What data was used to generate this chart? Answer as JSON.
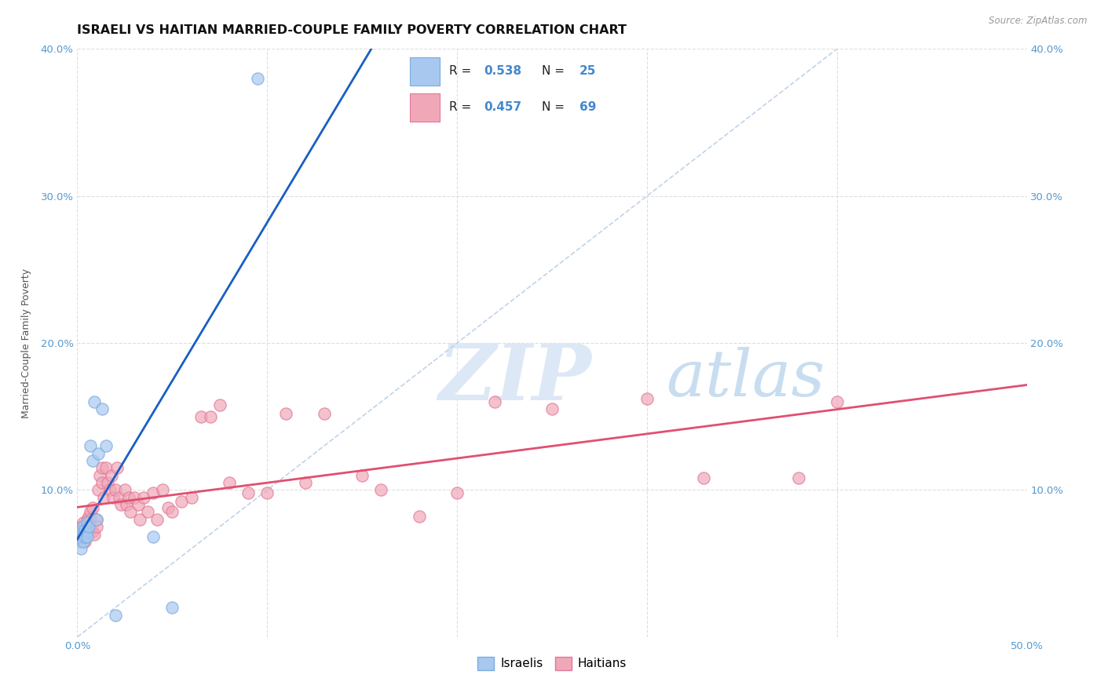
{
  "title": "ISRAELI VS HAITIAN MARRIED-COUPLE FAMILY POVERTY CORRELATION CHART",
  "source": "Source: ZipAtlas.com",
  "ylabel": "Married-Couple Family Poverty",
  "xlim": [
    0,
    0.5
  ],
  "ylim": [
    0,
    0.4
  ],
  "xticks": [
    0.0,
    0.1,
    0.2,
    0.3,
    0.4,
    0.5
  ],
  "yticks": [
    0.0,
    0.1,
    0.2,
    0.3,
    0.4
  ],
  "xtick_labels": [
    "0.0%",
    "",
    "",
    "",
    "",
    "50.0%"
  ],
  "ytick_labels_left": [
    "",
    "10.0%",
    "20.0%",
    "30.0%",
    "40.0%"
  ],
  "ytick_labels_right": [
    "",
    "10.0%",
    "20.0%",
    "30.0%",
    "40.0%"
  ],
  "israeli_color": "#a8c8f0",
  "israeli_edge_color": "#7aabdf",
  "haitian_color": "#f0a8b8",
  "haitian_edge_color": "#e07898",
  "israeli_R": 0.538,
  "israeli_N": 25,
  "haitian_R": 0.457,
  "haitian_N": 69,
  "israeli_scatter_x": [
    0.001,
    0.001,
    0.002,
    0.002,
    0.002,
    0.003,
    0.003,
    0.003,
    0.004,
    0.004,
    0.005,
    0.005,
    0.005,
    0.006,
    0.007,
    0.008,
    0.009,
    0.01,
    0.011,
    0.013,
    0.015,
    0.02,
    0.04,
    0.05,
    0.095
  ],
  "israeli_scatter_y": [
    0.065,
    0.07,
    0.068,
    0.072,
    0.06,
    0.075,
    0.07,
    0.065,
    0.068,
    0.073,
    0.072,
    0.068,
    0.078,
    0.075,
    0.13,
    0.12,
    0.16,
    0.08,
    0.125,
    0.155,
    0.13,
    0.015,
    0.068,
    0.02,
    0.38
  ],
  "haitian_scatter_x": [
    0.001,
    0.001,
    0.002,
    0.002,
    0.003,
    0.003,
    0.003,
    0.004,
    0.004,
    0.005,
    0.005,
    0.006,
    0.006,
    0.007,
    0.007,
    0.008,
    0.008,
    0.009,
    0.01,
    0.01,
    0.011,
    0.012,
    0.013,
    0.013,
    0.014,
    0.015,
    0.016,
    0.017,
    0.018,
    0.019,
    0.02,
    0.021,
    0.022,
    0.023,
    0.025,
    0.026,
    0.027,
    0.028,
    0.03,
    0.032,
    0.033,
    0.035,
    0.037,
    0.04,
    0.042,
    0.045,
    0.048,
    0.05,
    0.055,
    0.06,
    0.065,
    0.07,
    0.075,
    0.08,
    0.09,
    0.1,
    0.11,
    0.12,
    0.13,
    0.15,
    0.16,
    0.18,
    0.2,
    0.22,
    0.25,
    0.3,
    0.33,
    0.38,
    0.4
  ],
  "haitian_scatter_y": [
    0.068,
    0.072,
    0.07,
    0.075,
    0.068,
    0.072,
    0.078,
    0.065,
    0.07,
    0.08,
    0.075,
    0.082,
    0.078,
    0.085,
    0.08,
    0.088,
    0.072,
    0.07,
    0.08,
    0.075,
    0.1,
    0.11,
    0.105,
    0.115,
    0.095,
    0.115,
    0.105,
    0.1,
    0.11,
    0.095,
    0.1,
    0.115,
    0.095,
    0.09,
    0.1,
    0.09,
    0.095,
    0.085,
    0.095,
    0.09,
    0.08,
    0.095,
    0.085,
    0.098,
    0.08,
    0.1,
    0.088,
    0.085,
    0.092,
    0.095,
    0.15,
    0.15,
    0.158,
    0.105,
    0.098,
    0.098,
    0.152,
    0.105,
    0.152,
    0.11,
    0.1,
    0.082,
    0.098,
    0.16,
    0.155,
    0.162,
    0.108,
    0.108,
    0.16
  ],
  "background_color": "#ffffff",
  "grid_color": "#dedede",
  "watermark_zip_color": "#dce8f5",
  "watermark_atlas_color": "#c8ddf0",
  "israeli_line_color": "#1a5ec4",
  "haitian_line_color": "#e05070",
  "diagonal_color": "#c0d4e8",
  "tick_color": "#5599cc",
  "title_fontsize": 11.5,
  "axis_label_fontsize": 9,
  "tick_fontsize": 9.5,
  "legend_fontsize": 11
}
